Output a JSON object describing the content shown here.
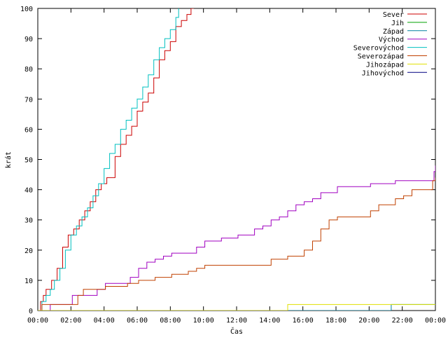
{
  "chart_data": {
    "type": "line",
    "title": "",
    "xlabel": "Čas",
    "ylabel": "krát",
    "xlim": [
      "00:00",
      "24:00"
    ],
    "ylim": [
      0,
      100
    ],
    "grid": false,
    "legend_position": "top-right",
    "x_ticks": [
      "00:00",
      "02:00",
      "04:00",
      "06:00",
      "08:00",
      "10:00",
      "12:00",
      "14:00",
      "16:00",
      "18:00",
      "20:00",
      "22:00",
      "00:00"
    ],
    "y_ticks": [
      0,
      10,
      20,
      30,
      40,
      50,
      60,
      70,
      80,
      90,
      100
    ],
    "series": [
      {
        "name": "Sever",
        "color": "#cc0000",
        "x": [
          "00:00",
          "00:10",
          "00:20",
          "00:30",
          "00:50",
          "01:10",
          "01:30",
          "01:50",
          "02:10",
          "02:30",
          "02:50",
          "03:10",
          "03:30",
          "03:50",
          "04:10",
          "04:40",
          "05:00",
          "05:20",
          "05:40",
          "06:00",
          "06:20",
          "06:40",
          "07:00",
          "07:20",
          "07:40",
          "08:00",
          "08:20",
          "08:40",
          "09:00",
          "09:15",
          "09:25"
        ],
        "y": [
          0,
          3,
          5,
          7,
          10,
          14,
          21,
          25,
          27,
          30,
          33,
          36,
          40,
          42,
          44,
          51,
          55,
          58,
          61,
          66,
          69,
          72,
          77,
          83,
          86,
          89,
          94,
          96,
          98,
          100,
          100
        ]
      },
      {
        "name": "Jih",
        "color": "#00a000",
        "x": [],
        "y": []
      },
      {
        "name": "Západ",
        "color": "#0080a0",
        "x": [
          "00:00",
          "21:15",
          "21:20",
          "24:00"
        ],
        "y": [
          0,
          0,
          2,
          2
        ]
      },
      {
        "name": "Východ",
        "color": "#a000c0",
        "x": [
          "00:00",
          "00:40",
          "00:45",
          "02:00",
          "02:05",
          "03:30",
          "03:35",
          "04:00",
          "04:05",
          "05:30",
          "05:35",
          "06:00",
          "06:05",
          "06:30",
          "06:35",
          "07:00",
          "07:05",
          "07:30",
          "07:35",
          "08:00",
          "08:05",
          "09:30",
          "09:35",
          "10:00",
          "10:05",
          "11:00",
          "11:05",
          "12:00",
          "12:05",
          "13:00",
          "13:05",
          "13:30",
          "13:35",
          "14:00",
          "14:05",
          "14:30",
          "14:35",
          "15:00",
          "15:05",
          "15:30",
          "15:35",
          "16:00",
          "16:05",
          "16:30",
          "16:35",
          "17:00",
          "17:05",
          "18:00",
          "18:05",
          "20:00",
          "20:05",
          "21:30",
          "21:35",
          "23:45",
          "23:55",
          "24:00"
        ],
        "y": [
          0,
          0,
          2,
          2,
          5,
          5,
          7,
          7,
          9,
          9,
          11,
          11,
          14,
          14,
          16,
          16,
          17,
          17,
          18,
          18,
          19,
          19,
          21,
          21,
          23,
          23,
          24,
          24,
          25,
          25,
          27,
          27,
          28,
          28,
          30,
          30,
          31,
          31,
          33,
          33,
          35,
          35,
          36,
          36,
          37,
          37,
          39,
          39,
          41,
          41,
          42,
          42,
          43,
          43,
          46,
          48
        ]
      },
      {
        "name": "Severovýchod",
        "color": "#00c0c0",
        "x": [
          "00:00",
          "00:15",
          "00:30",
          "00:45",
          "01:00",
          "01:20",
          "01:40",
          "02:00",
          "02:20",
          "02:40",
          "03:00",
          "03:20",
          "03:40",
          "04:00",
          "04:20",
          "04:40",
          "05:00",
          "05:20",
          "05:40",
          "06:00",
          "06:20",
          "06:40",
          "07:00",
          "07:20",
          "07:40",
          "08:00",
          "08:20",
          "08:30"
        ],
        "y": [
          0,
          3,
          5,
          7,
          10,
          14,
          20,
          25,
          28,
          31,
          34,
          38,
          42,
          47,
          52,
          55,
          60,
          63,
          67,
          70,
          74,
          78,
          83,
          87,
          90,
          93,
          97,
          100
        ]
      },
      {
        "name": "Severozápad",
        "color": "#c04000",
        "x": [
          "00:00",
          "00:10",
          "00:15",
          "02:20",
          "02:25",
          "02:40",
          "02:45",
          "04:00",
          "04:05",
          "05:20",
          "05:25",
          "06:00",
          "06:05",
          "07:00",
          "07:05",
          "08:00",
          "08:05",
          "09:00",
          "09:05",
          "09:30",
          "09:35",
          "10:00",
          "10:05",
          "11:00",
          "11:05",
          "14:00",
          "14:05",
          "15:00",
          "15:05",
          "16:00",
          "16:05",
          "16:30",
          "16:35",
          "17:00",
          "17:05",
          "17:30",
          "17:35",
          "18:00",
          "18:05",
          "20:00",
          "20:05",
          "20:30",
          "20:35",
          "21:30",
          "21:35",
          "22:00",
          "22:05",
          "22:30",
          "22:35",
          "23:45",
          "23:50",
          "24:00"
        ],
        "y": [
          0,
          0,
          2,
          2,
          5,
          5,
          7,
          7,
          8,
          8,
          9,
          9,
          10,
          10,
          11,
          11,
          12,
          12,
          13,
          13,
          14,
          14,
          15,
          15,
          15,
          15,
          17,
          17,
          18,
          18,
          20,
          20,
          23,
          23,
          27,
          27,
          30,
          30,
          31,
          31,
          33,
          33,
          35,
          35,
          37,
          37,
          38,
          38,
          40,
          40,
          43,
          44
        ]
      },
      {
        "name": "Jihozápad",
        "color": "#e0e000",
        "x": [
          "00:00",
          "15:00",
          "15:05",
          "24:00"
        ],
        "y": [
          0,
          0,
          2,
          2
        ]
      },
      {
        "name": "Jihovýchod",
        "color": "#000080",
        "x": [],
        "y": []
      }
    ]
  }
}
